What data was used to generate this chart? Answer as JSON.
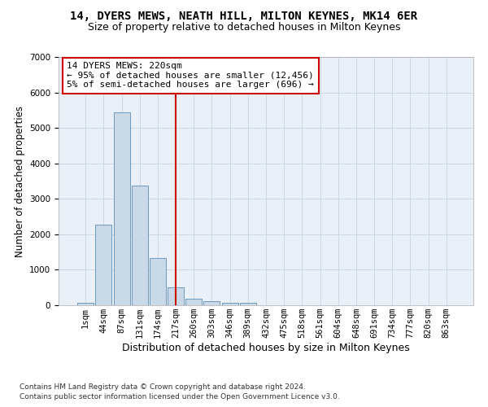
{
  "title": "14, DYERS MEWS, NEATH HILL, MILTON KEYNES, MK14 6ER",
  "subtitle": "Size of property relative to detached houses in Milton Keynes",
  "xlabel": "Distribution of detached houses by size in Milton Keynes",
  "ylabel": "Number of detached properties",
  "footer1": "Contains HM Land Registry data © Crown copyright and database right 2024.",
  "footer2": "Contains public sector information licensed under the Open Government Licence v3.0.",
  "bar_labels": [
    "1sqm",
    "44sqm",
    "87sqm",
    "131sqm",
    "174sqm",
    "217sqm",
    "260sqm",
    "303sqm",
    "346sqm",
    "389sqm",
    "432sqm",
    "475sqm",
    "518sqm",
    "561sqm",
    "604sqm",
    "648sqm",
    "691sqm",
    "734sqm",
    "777sqm",
    "820sqm",
    "863sqm"
  ],
  "bar_values": [
    80,
    2280,
    5450,
    3380,
    1320,
    500,
    175,
    105,
    80,
    75,
    0,
    0,
    0,
    0,
    0,
    0,
    0,
    0,
    0,
    0,
    0
  ],
  "bar_color": "#c9d9e8",
  "bar_edgecolor": "#5b8db8",
  "grid_color": "#c8d8e8",
  "background_color": "#eaf0f7",
  "vline_x": 5,
  "vline_color": "#cc0000",
  "annotation_line1": "14 DYERS MEWS: 220sqm",
  "annotation_line2": "← 95% of detached houses are smaller (12,456)",
  "annotation_line3": "5% of semi-detached houses are larger (696) →",
  "annotation_box_color": "#ffffff",
  "annotation_box_edgecolor": "#cc0000",
  "ylim": [
    0,
    7000
  ],
  "yticks": [
    0,
    1000,
    2000,
    3000,
    4000,
    5000,
    6000,
    7000
  ],
  "title_fontsize": 10,
  "subtitle_fontsize": 9,
  "xlabel_fontsize": 9,
  "ylabel_fontsize": 8.5,
  "tick_fontsize": 7.5,
  "annotation_fontsize": 8,
  "footer_fontsize": 6.5
}
